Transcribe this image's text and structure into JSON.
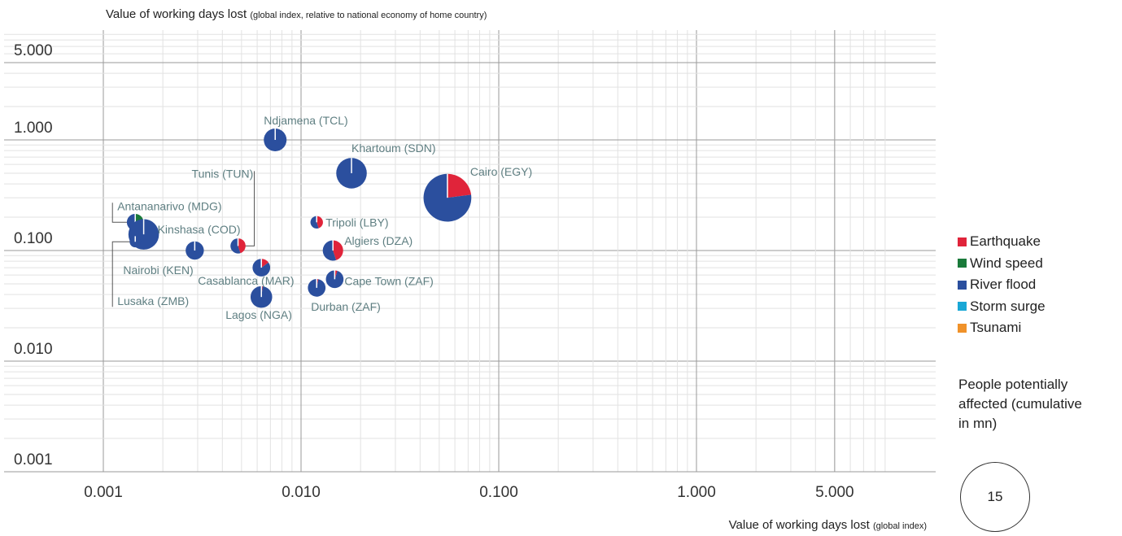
{
  "chart_data": {
    "type": "scatter",
    "title": "",
    "ylabel": "Value of working days lost",
    "ylabel_note": "(global index, relative to national economy of home country)",
    "xlabel": "Value of working days lost",
    "xlabel_note": "(global index)",
    "x_scale": "log",
    "y_scale": "log",
    "xlim": [
      0.001,
      10
    ],
    "ylim": [
      0.001,
      10
    ],
    "x_ticks": [
      0.001,
      0.01,
      0.1,
      1,
      5
    ],
    "x_tick_labels": [
      "0.001",
      "0.010",
      "0.100",
      "1.000",
      "5.000"
    ],
    "y_ticks": [
      0.001,
      0.01,
      0.1,
      1,
      5
    ],
    "y_tick_labels": [
      "0.001",
      "0.010",
      "0.100",
      "1.000",
      "5.000"
    ],
    "grid": true,
    "legend_position": "right",
    "series": [
      {
        "name": "Earthquake",
        "color": "#e0243a"
      },
      {
        "name": "Wind speed",
        "color": "#1a7a3a"
      },
      {
        "name": "River flood",
        "color": "#2b4f9e"
      },
      {
        "name": "Storm surge",
        "color": "#19a7d6"
      },
      {
        "name": "Tsunami",
        "color": "#f0922a"
      }
    ],
    "points": [
      {
        "label": "Cairo (EGY)",
        "x": 0.055,
        "y": 0.3,
        "people": 22,
        "shares": [
          0.23,
          0,
          0.77,
          0,
          0
        ]
      },
      {
        "label": "Khartoum (SDN)",
        "x": 0.018,
        "y": 0.5,
        "people": 9,
        "shares": [
          0,
          0,
          1,
          0,
          0
        ]
      },
      {
        "label": "Ndjamena (TCL)",
        "x": 0.0074,
        "y": 1.0,
        "people": 5,
        "shares": [
          0,
          0,
          1,
          0,
          0
        ]
      },
      {
        "label": "Tunis (TUN)",
        "x": 0.0048,
        "y": 0.11,
        "people": 2.2,
        "shares": [
          0.45,
          0,
          0.55,
          0,
          0
        ]
      },
      {
        "label": "Antananarivo (MDG)",
        "x": 0.00145,
        "y": 0.18,
        "people": 2.7,
        "shares": [
          0,
          0.3,
          0.7,
          0,
          0
        ]
      },
      {
        "label": "Kinshasa (COD)",
        "x": 0.0016,
        "y": 0.14,
        "people": 9,
        "shares": [
          0,
          0,
          1,
          0,
          0
        ]
      },
      {
        "label": "Lusaka (ZMB)",
        "x": 0.00145,
        "y": 0.12,
        "people": 1.2,
        "shares": [
          0,
          0,
          1,
          0,
          0
        ]
      },
      {
        "label": "Nairobi (KEN)",
        "x": 0.0029,
        "y": 0.1,
        "people": 3.2,
        "shares": [
          0,
          0,
          1,
          0,
          0
        ]
      },
      {
        "label": "Tripoli (LBY)",
        "x": 0.012,
        "y": 0.18,
        "people": 1.5,
        "shares": [
          0.45,
          0,
          0.55,
          0,
          0
        ]
      },
      {
        "label": "Algiers (DZA)",
        "x": 0.0145,
        "y": 0.1,
        "people": 4,
        "shares": [
          0.45,
          0,
          0.55,
          0,
          0
        ]
      },
      {
        "label": "Casablanca (MAR)",
        "x": 0.0063,
        "y": 0.07,
        "people": 3,
        "shares": [
          0.15,
          0,
          0.85,
          0,
          0
        ]
      },
      {
        "label": "Cape Town (ZAF)",
        "x": 0.0148,
        "y": 0.055,
        "people": 3,
        "shares": [
          0.05,
          0,
          0.95,
          0,
          0
        ]
      },
      {
        "label": "Durban (ZAF)",
        "x": 0.012,
        "y": 0.046,
        "people": 3,
        "shares": [
          0.03,
          0,
          0.97,
          0,
          0
        ]
      },
      {
        "label": "Lagos (NGA)",
        "x": 0.0063,
        "y": 0.038,
        "people": 4.5,
        "shares": [
          0.02,
          0,
          0.98,
          0,
          0
        ]
      }
    ],
    "size_legend": {
      "title": "People potentially affected (cumulative in mn)",
      "value": "15"
    }
  }
}
